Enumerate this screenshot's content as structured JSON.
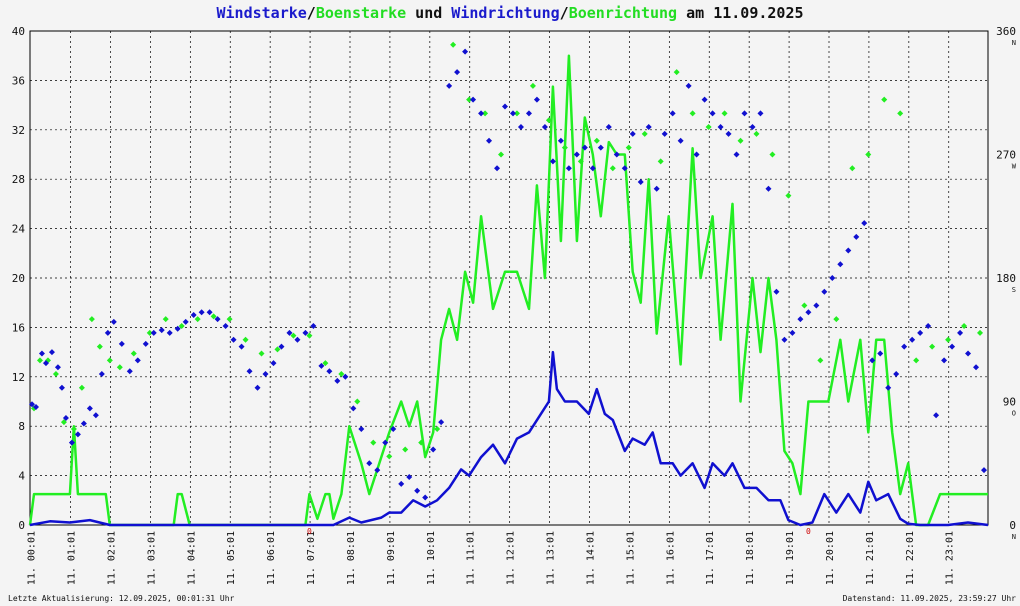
{
  "title": {
    "part1": "Windstarke",
    "sep1": "/",
    "part2": "Boenstarke",
    "part3": " und ",
    "part4": "Windrichtung",
    "sep2": "/",
    "part5": "Boenrichtung",
    "part6": " am 11.09.2025"
  },
  "footer": {
    "left": "Letzte Aktualisierung: 12.09.2025, 00:01:31 Uhr",
    "right": "Datenstand: 11.09.2025, 23:59:27 Uhr"
  },
  "colors": {
    "wind": "#1010d0",
    "gust": "#22ee22",
    "grid": "#000000",
    "background": "#f4f4f4"
  },
  "chart_data": {
    "type": "line",
    "x_unit": "hour of day",
    "x_range": [
      0,
      24
    ],
    "x_tick_labels": [
      "11. 00:01",
      "11. 01:01",
      "11. 02:01",
      "11. 03:01",
      "11. 04:01",
      "11. 05:01",
      "11. 06:01",
      "11. 07:01",
      "11. 08:01",
      "11. 09:01",
      "11. 10:01",
      "11. 11:01",
      "11. 12:01",
      "11. 13:01",
      "11. 14:01",
      "11. 15:01",
      "11. 16:01",
      "11. 17:01",
      "11. 18:01",
      "11. 19:01",
      "11. 20:01",
      "11. 21:01",
      "11. 22:01",
      "11. 23:01"
    ],
    "y_left": {
      "range": [
        0,
        40
      ],
      "ticks": [
        "0",
        "4",
        "8",
        "12",
        "16",
        "20",
        "24",
        "28",
        "32",
        "36",
        "40"
      ]
    },
    "y_right": {
      "range": [
        0,
        360
      ],
      "ticks": [
        {
          "value": 0,
          "label": "0",
          "dir": "N"
        },
        {
          "value": 90,
          "label": "90",
          "dir": "O"
        },
        {
          "value": 180,
          "label": "180",
          "dir": "S"
        },
        {
          "value": 270,
          "label": "270",
          "dir": "W"
        },
        {
          "value": 360,
          "label": "360",
          "dir": "N"
        }
      ]
    },
    "grid": true,
    "midnight_markers": [
      {
        "x": 7.0,
        "label": "0"
      },
      {
        "x": 19.5,
        "label": "0"
      }
    ],
    "series": [
      {
        "name": "Windstarke",
        "kind": "speed_line",
        "x": [
          0,
          0.5,
          1,
          1.5,
          2,
          3,
          4,
          5,
          6,
          7,
          7.6,
          8,
          8.3,
          8.8,
          9,
          9.3,
          9.6,
          9.9,
          10.2,
          10.5,
          10.8,
          11,
          11.3,
          11.6,
          11.9,
          12.2,
          12.5,
          12.8,
          13,
          13.1,
          13.2,
          13.4,
          13.7,
          14,
          14.2,
          14.4,
          14.6,
          14.9,
          15.1,
          15.4,
          15.6,
          15.8,
          16.1,
          16.3,
          16.6,
          16.9,
          17.1,
          17.4,
          17.6,
          17.9,
          18.2,
          18.5,
          18.8,
          19,
          19.3,
          19.6,
          19.9,
          20.2,
          20.5,
          20.8,
          21,
          21.2,
          21.5,
          21.8,
          22,
          22.3,
          22.6,
          23,
          23.5,
          24
        ],
        "y": [
          0,
          0.3,
          0.2,
          0.4,
          0,
          0,
          0,
          0,
          0,
          0,
          0,
          0.6,
          0.2,
          0.6,
          1,
          1,
          2,
          1.5,
          2,
          3,
          4.5,
          4,
          5.5,
          6.5,
          5,
          7,
          7.5,
          9,
          10,
          14,
          11,
          10,
          10,
          9,
          11,
          9,
          8.5,
          6,
          7,
          6.5,
          7.5,
          5,
          5,
          4,
          5,
          3,
          5,
          4,
          5,
          3,
          3,
          2,
          2,
          0.4,
          0,
          0.2,
          2.5,
          1,
          2.5,
          1,
          3.5,
          2,
          2.5,
          0.5,
          0.1,
          0,
          0,
          0,
          0.2,
          0
        ]
      },
      {
        "name": "Boenstarke",
        "kind": "speed_line",
        "x": [
          0,
          0.1,
          1,
          1.1,
          1.2,
          1.9,
          2,
          3,
          3.6,
          3.7,
          3.8,
          4,
          5,
          6,
          6.9,
          7,
          7.2,
          7.4,
          7.5,
          7.6,
          7.8,
          8,
          8.3,
          8.5,
          8.8,
          9,
          9.3,
          9.5,
          9.7,
          9.9,
          10.1,
          10.3,
          10.5,
          10.7,
          10.9,
          11.1,
          11.3,
          11.6,
          11.9,
          12.2,
          12.5,
          12.7,
          12.9,
          13.1,
          13.3,
          13.5,
          13.7,
          13.9,
          14.1,
          14.3,
          14.5,
          14.7,
          14.9,
          15.1,
          15.3,
          15.5,
          15.7,
          16,
          16.3,
          16.6,
          16.8,
          17.1,
          17.3,
          17.6,
          17.8,
          18.1,
          18.3,
          18.5,
          18.7,
          18.9,
          19.1,
          19.3,
          19.5,
          19.7,
          20,
          20.3,
          20.5,
          20.8,
          21,
          21.2,
          21.4,
          21.6,
          21.8,
          22,
          22.2,
          22.5,
          22.8,
          23.1,
          23.4,
          24
        ],
        "y": [
          0,
          2.5,
          2.5,
          8,
          2.5,
          2.5,
          0,
          0,
          0,
          2.5,
          2.5,
          0,
          0,
          0,
          0,
          2.5,
          0.5,
          2.5,
          2.5,
          0.5,
          2.5,
          8,
          5,
          2.5,
          5.5,
          7.5,
          10,
          8,
          10,
          5.5,
          7.5,
          15,
          17.5,
          15,
          20.5,
          18,
          25,
          17.5,
          20.5,
          20.5,
          17.5,
          27.5,
          20,
          35.5,
          23,
          38,
          23,
          33,
          30,
          25,
          31,
          30,
          30,
          20.5,
          18,
          28,
          15.5,
          25,
          13,
          30.5,
          20,
          25,
          15,
          26,
          10,
          20,
          14,
          20,
          15,
          6,
          5,
          2.5,
          10,
          10,
          10,
          15,
          10,
          15,
          7.5,
          15,
          15,
          7.5,
          2.5,
          5,
          0,
          0,
          2.5,
          2.5,
          2.5,
          2.5
        ]
      },
      {
        "name": "Windrichtung",
        "kind": "direction_points",
        "x": [
          0.05,
          0.15,
          0.3,
          0.4,
          0.55,
          0.7,
          0.8,
          0.9,
          1.05,
          1.2,
          1.35,
          1.5,
          1.65,
          1.8,
          1.95,
          2.1,
          2.3,
          2.5,
          2.7,
          2.9,
          3.1,
          3.3,
          3.5,
          3.7,
          3.9,
          4.1,
          4.3,
          4.5,
          4.7,
          4.9,
          5.1,
          5.3,
          5.5,
          5.7,
          5.9,
          6.1,
          6.3,
          6.5,
          6.7,
          6.9,
          7.1,
          7.3,
          7.5,
          7.7,
          7.9,
          8.1,
          8.3,
          8.5,
          8.7,
          8.9,
          9.1,
          9.3,
          9.5,
          9.7,
          9.9,
          10.1,
          10.3,
          10.5,
          10.7,
          10.9,
          11.1,
          11.3,
          11.5,
          11.7,
          11.9,
          12.1,
          12.3,
          12.5,
          12.7,
          12.9,
          13.1,
          13.3,
          13.5,
          13.7,
          13.9,
          14.1,
          14.3,
          14.5,
          14.7,
          14.9,
          15.1,
          15.3,
          15.5,
          15.7,
          15.9,
          16.1,
          16.3,
          16.5,
          16.7,
          16.9,
          17.1,
          17.3,
          17.5,
          17.7,
          17.9,
          18.1,
          18.3,
          18.5,
          18.7,
          18.9,
          19.1,
          19.3,
          19.5,
          19.7,
          19.9,
          20.1,
          20.3,
          20.5,
          20.7,
          20.9,
          21.1,
          21.3,
          21.5,
          21.7,
          21.9,
          22.1,
          22.3,
          22.5,
          22.7,
          22.9,
          23.1,
          23.3,
          23.5,
          23.7,
          23.9
        ],
        "y": [
          88,
          86,
          125,
          118,
          126,
          115,
          100,
          78,
          60,
          66,
          74,
          85,
          80,
          110,
          140,
          148,
          132,
          112,
          120,
          132,
          140,
          142,
          140,
          143,
          148,
          153,
          155,
          155,
          150,
          145,
          135,
          130,
          112,
          100,
          110,
          118,
          130,
          140,
          135,
          140,
          145,
          116,
          112,
          105,
          108,
          85,
          70,
          45,
          40,
          60,
          70,
          30,
          35,
          25,
          20,
          55,
          75,
          320,
          330,
          345,
          310,
          300,
          280,
          260,
          305,
          300,
          290,
          300,
          310,
          290,
          265,
          280,
          260,
          270,
          275,
          260,
          275,
          290,
          270,
          260,
          285,
          250,
          290,
          245,
          285,
          300,
          280,
          320,
          270,
          310,
          300,
          290,
          285,
          270,
          300,
          290,
          300,
          245,
          170,
          135,
          140,
          150,
          155,
          160,
          170,
          180,
          190,
          200,
          210,
          220,
          120,
          125,
          100,
          110,
          130,
          135,
          140,
          145,
          80,
          120,
          130,
          140,
          125,
          115,
          40
        ]
      },
      {
        "name": "Boenrichtung",
        "kind": "direction_points",
        "x": [
          0.1,
          0.25,
          0.45,
          0.65,
          0.85,
          1.1,
          1.3,
          1.55,
          1.75,
          2.0,
          2.25,
          2.6,
          3.0,
          3.4,
          3.8,
          4.2,
          4.6,
          5.0,
          5.4,
          5.8,
          6.2,
          6.6,
          7.0,
          7.4,
          7.8,
          8.2,
          8.6,
          9.0,
          9.4,
          9.8,
          10.2,
          10.6,
          11.0,
          11.4,
          11.8,
          12.2,
          12.6,
          13.0,
          13.4,
          13.8,
          14.2,
          14.6,
          15.0,
          15.4,
          15.8,
          16.2,
          16.6,
          17.0,
          17.4,
          17.8,
          18.2,
          18.6,
          19.0,
          19.4,
          19.8,
          20.2,
          20.6,
          21.0,
          21.4,
          21.8,
          22.2,
          22.6,
          23.0,
          23.4,
          23.8
        ],
        "y": [
          85,
          120,
          120,
          110,
          75,
          70,
          100,
          150,
          130,
          120,
          115,
          125,
          140,
          150,
          145,
          150,
          152,
          150,
          135,
          125,
          128,
          138,
          138,
          118,
          110,
          90,
          60,
          50,
          55,
          60,
          70,
          350,
          310,
          300,
          270,
          300,
          320,
          295,
          275,
          265,
          280,
          260,
          275,
          285,
          265,
          330,
          300,
          290,
          300,
          280,
          285,
          270,
          240,
          160,
          120,
          150,
          260,
          270,
          310,
          300,
          120,
          130,
          135,
          145,
          140
        ]
      }
    ]
  }
}
